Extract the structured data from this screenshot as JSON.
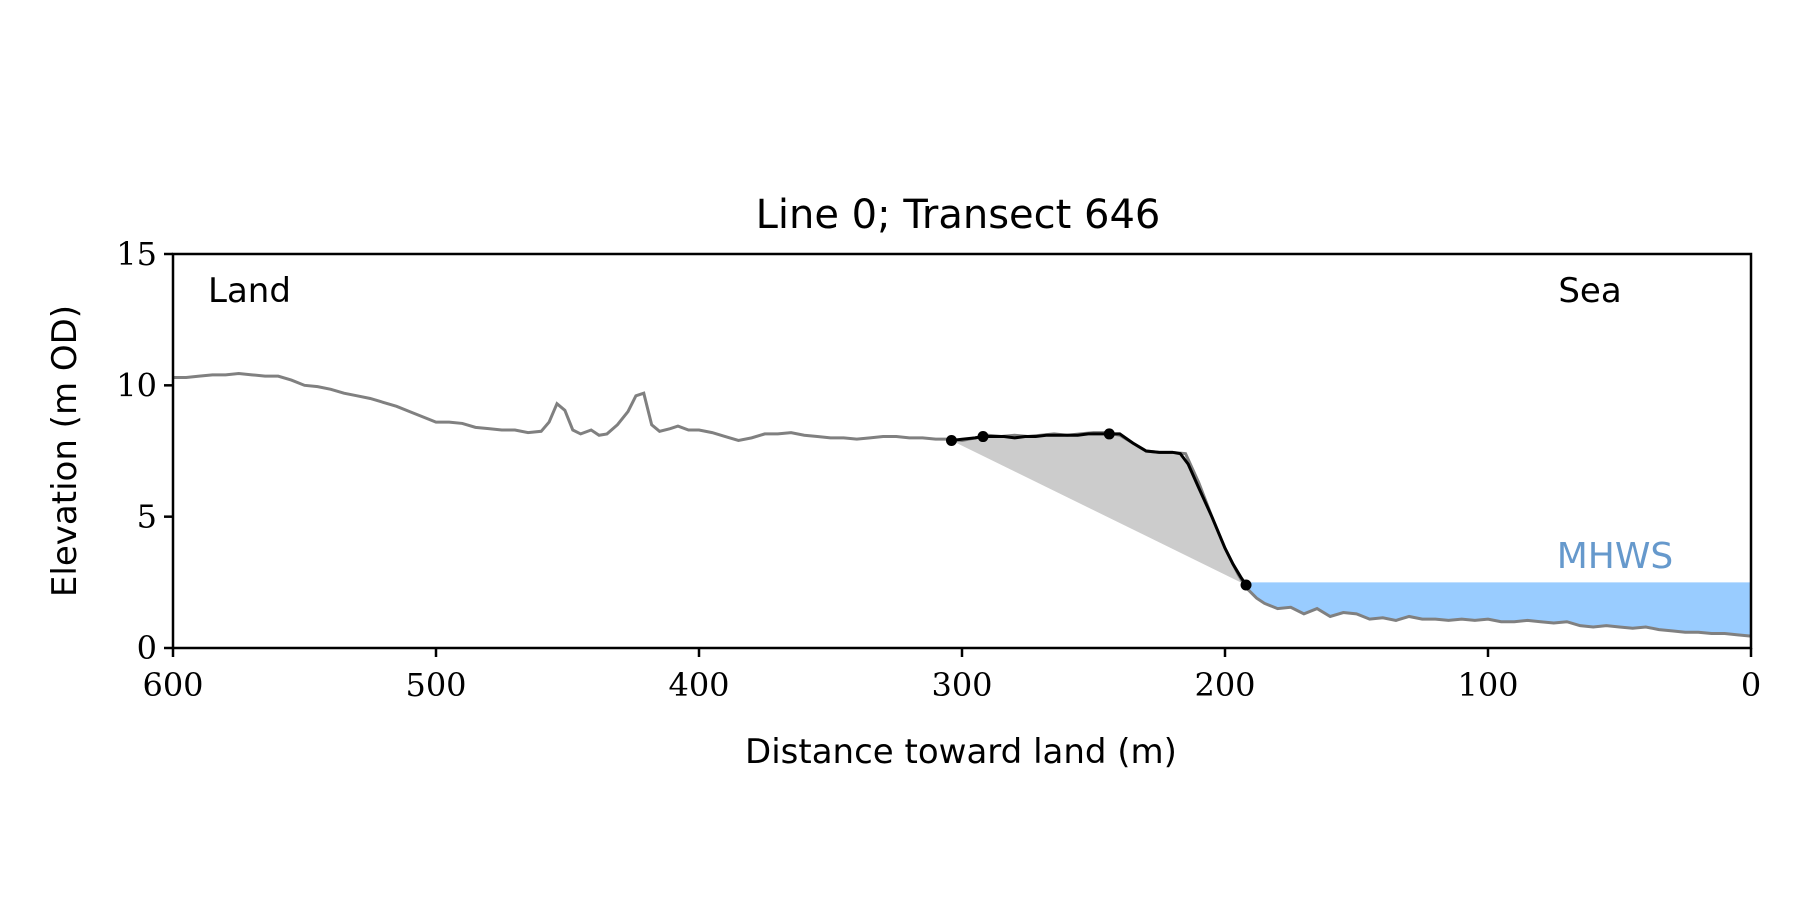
{
  "chart_data": {
    "type": "line",
    "title": "Line 0; Transect 646",
    "xlabel": "Distance toward land (m)",
    "ylabel": "Elevation (m OD)",
    "xlim": [
      600,
      0
    ],
    "ylim": [
      0,
      15
    ],
    "x_ticks": [
      "600",
      "500",
      "400",
      "300",
      "200",
      "100",
      "0"
    ],
    "x_tick_values": [
      600,
      500,
      400,
      300,
      200,
      100,
      0
    ],
    "y_ticks": [
      "0",
      "5",
      "10",
      "15"
    ],
    "y_tick_values": [
      0,
      5,
      10,
      15
    ],
    "grid": false,
    "annotations": {
      "land": "Land",
      "sea": "Sea",
      "mhws": "MHWS"
    },
    "mhws_level": 2.5,
    "colors": {
      "profile": "#808080",
      "cliff": "#000000",
      "fill": "#cccccc",
      "water": "#99ccff",
      "mhws_text": "#6699cc"
    },
    "profile": {
      "x": [
        600,
        595,
        590,
        585,
        580,
        575,
        570,
        565,
        560,
        555,
        550,
        545,
        540,
        535,
        530,
        525,
        520,
        515,
        510,
        505,
        500,
        495,
        490,
        485,
        480,
        475,
        470,
        465,
        460,
        457,
        454,
        451,
        448,
        445,
        441,
        438,
        435,
        431,
        427,
        424,
        421,
        418,
        415,
        411,
        408,
        404,
        400,
        395,
        390,
        385,
        380,
        375,
        370,
        365,
        360,
        355,
        350,
        345,
        340,
        335,
        330,
        325,
        320,
        315,
        310,
        305,
        300,
        295,
        290,
        285,
        280,
        275,
        270,
        265,
        260,
        255,
        250,
        245,
        240,
        235,
        230,
        225,
        220,
        215,
        210,
        205,
        200,
        195,
        192,
        188,
        185,
        180,
        175,
        170,
        165,
        160,
        155,
        150,
        145,
        140,
        135,
        130,
        125,
        120,
        115,
        110,
        105,
        100,
        95,
        90,
        85,
        80,
        75,
        70,
        65,
        60,
        55,
        50,
        45,
        40,
        35,
        30,
        25,
        20,
        15,
        10,
        5,
        0
      ],
      "y": [
        10.3,
        10.3,
        10.35,
        10.4,
        10.4,
        10.45,
        10.4,
        10.35,
        10.35,
        10.2,
        10.0,
        9.95,
        9.85,
        9.7,
        9.6,
        9.5,
        9.35,
        9.2,
        9.0,
        8.8,
        8.6,
        8.6,
        8.55,
        8.4,
        8.35,
        8.3,
        8.3,
        8.2,
        8.25,
        8.6,
        9.3,
        9.05,
        8.3,
        8.15,
        8.3,
        8.1,
        8.15,
        8.5,
        9.0,
        9.6,
        9.7,
        8.5,
        8.25,
        8.35,
        8.45,
        8.3,
        8.3,
        8.2,
        8.05,
        7.9,
        8.0,
        8.15,
        8.15,
        8.2,
        8.1,
        8.05,
        8.0,
        8.0,
        7.95,
        8.0,
        8.05,
        8.05,
        8.0,
        8.0,
        7.95,
        7.95,
        7.9,
        8.0,
        8.1,
        8.05,
        8.1,
        8.05,
        8.1,
        8.15,
        8.1,
        8.15,
        8.2,
        8.2,
        8.1,
        7.8,
        7.5,
        7.45,
        7.45,
        7.4,
        6.3,
        5.0,
        3.8,
        2.8,
        2.3,
        1.9,
        1.7,
        1.5,
        1.55,
        1.3,
        1.5,
        1.2,
        1.35,
        1.3,
        1.1,
        1.15,
        1.05,
        1.2,
        1.1,
        1.1,
        1.05,
        1.1,
        1.05,
        1.1,
        1.0,
        1.0,
        1.05,
        1.0,
        0.95,
        1.0,
        0.85,
        0.8,
        0.85,
        0.8,
        0.75,
        0.8,
        0.7,
        0.65,
        0.6,
        0.6,
        0.55,
        0.55,
        0.5,
        0.45
      ]
    },
    "cliff": {
      "x": [
        304,
        300,
        295,
        292,
        288,
        284,
        280,
        276,
        272,
        268,
        264,
        260,
        256,
        252,
        248,
        244,
        240,
        235,
        230,
        225,
        220,
        217,
        214,
        210,
        205,
        200,
        197,
        194,
        192
      ],
      "y": [
        7.9,
        7.95,
        8.0,
        8.05,
        8.05,
        8.05,
        8.0,
        8.05,
        8.05,
        8.1,
        8.1,
        8.1,
        8.1,
        8.15,
        8.15,
        8.15,
        8.15,
        7.8,
        7.5,
        7.45,
        7.45,
        7.4,
        7.0,
        6.1,
        5.0,
        3.8,
        3.2,
        2.7,
        2.4
      ]
    },
    "markers": {
      "x": [
        304,
        292,
        244,
        192
      ],
      "y": [
        7.9,
        8.05,
        8.15,
        2.4
      ]
    },
    "wedge": {
      "x": [
        304,
        192
      ],
      "y": [
        7.9,
        2.4
      ]
    }
  }
}
